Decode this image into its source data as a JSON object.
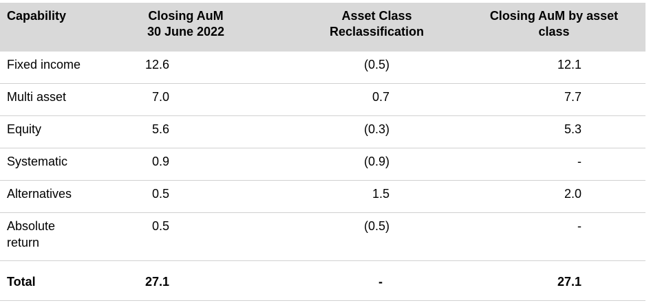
{
  "headers": [
    "Capability",
    "Closing AuM\n30 June 2022",
    "Asset Class\nReclassification",
    "Closing AuM by asset\nclass"
  ],
  "rows": [
    {
      "capability": "Fixed income",
      "closing_aum": "12.6",
      "reclassification": "(0.5)",
      "closing_by_class": "12.1"
    },
    {
      "capability": "Multi asset",
      "closing_aum": "7.0",
      "reclassification": "0.7",
      "closing_by_class": "7.7"
    },
    {
      "capability": "Equity",
      "closing_aum": "5.6",
      "reclassification": "(0.3)",
      "closing_by_class": "5.3"
    },
    {
      "capability": "Systematic",
      "closing_aum": "0.9",
      "reclassification": "(0.9)",
      "closing_by_class": "-"
    },
    {
      "capability": "Alternatives",
      "closing_aum": "0.5",
      "reclassification": "1.5",
      "closing_by_class": "2.0"
    },
    {
      "capability": "Absolute return",
      "closing_aum": "0.5",
      "reclassification": "(0.5)",
      "closing_by_class": "-"
    }
  ],
  "total": {
    "capability": "Total",
    "closing_aum": "27.1",
    "reclassification": "-",
    "closing_by_class": "27.1"
  }
}
